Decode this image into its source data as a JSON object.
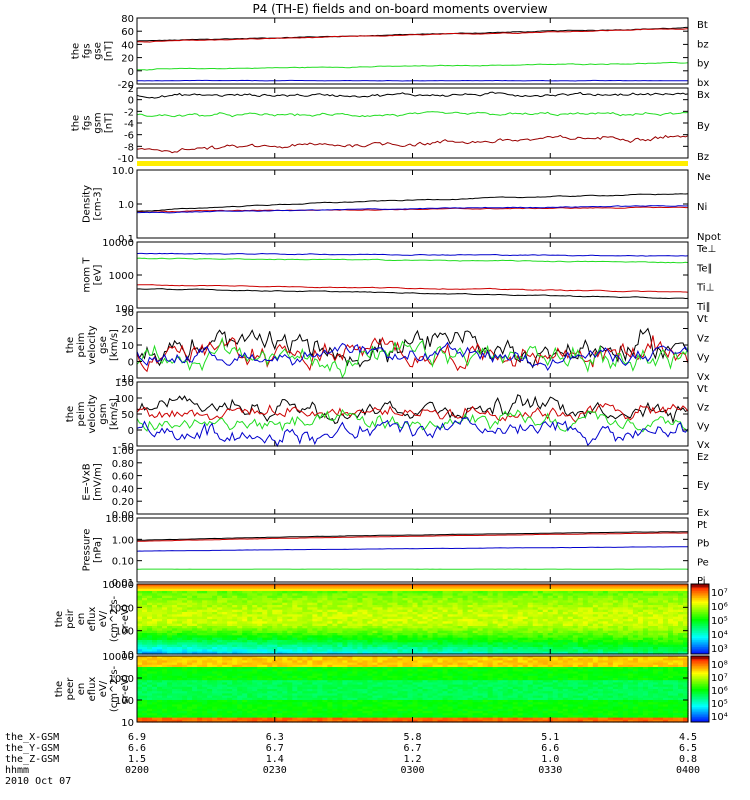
{
  "title": "P4 (TH-E) fields and on-board moments overview",
  "colors": {
    "black": "#000000",
    "red": "#cc0000",
    "green": "#22dd22",
    "blue": "#0000cc",
    "darkred": "#990000",
    "yellow": "#ffee00"
  },
  "chart_data": [
    {
      "type": "line",
      "id": "fgs_gse",
      "ylabel": [
        "the",
        "fgs",
        "gse",
        "[nT]"
      ],
      "yticks": [
        "80",
        "60",
        "40",
        "20",
        "0",
        "-20"
      ],
      "ylim": [
        -20,
        80
      ],
      "series": [
        {
          "name": "Bt",
          "color": "#000000",
          "start": 45,
          "end": 65,
          "noise": 0.4
        },
        {
          "name": "bz",
          "color": "#cc0000",
          "start": 44,
          "end": 64,
          "noise": 0.4
        },
        {
          "name": "by",
          "color": "#22dd22",
          "start": 2,
          "end": 12,
          "noise": 0.4
        },
        {
          "name": "bx",
          "color": "#0000cc",
          "start": -15,
          "end": -15,
          "noise": 0.2
        }
      ]
    },
    {
      "type": "line",
      "id": "fgs_gsm",
      "ylabel": [
        "the",
        "fgs",
        "gsm",
        "[nT]"
      ],
      "yticks": [
        "2",
        "0",
        "-2",
        "-4",
        "-6",
        "-8",
        "-10"
      ],
      "ylim": [
        -11,
        3
      ],
      "series": [
        {
          "name": "Bx",
          "color": "#000000",
          "start": 1.5,
          "end": 1.8,
          "noise": 0.2
        },
        {
          "name": "By",
          "color": "#22dd22",
          "start": -2.5,
          "end": -2.2,
          "noise": 0.2
        },
        {
          "name": "Bz",
          "color": "#990000",
          "start": -9.5,
          "end": -6.5,
          "noise": 0.3
        }
      ]
    },
    {
      "type": "line",
      "id": "density",
      "ylabel": [
        "Density",
        "[cm-3]"
      ],
      "yticks": [
        "10.0",
        "1.0",
        "0.1"
      ],
      "ylim": [
        0.1,
        10
      ],
      "log": true,
      "series": [
        {
          "name": "Ne",
          "color": "#cc0000",
          "start": 0.6,
          "end": 0.8,
          "noise": 0.02
        },
        {
          "name": "Ni",
          "color": "#000000",
          "start": 0.6,
          "end": 2.0,
          "noise": 0.02
        },
        {
          "name": "Npot",
          "color": "#0000cc",
          "start": 0.55,
          "end": 0.9,
          "noise": 0.02
        }
      ]
    },
    {
      "type": "line",
      "id": "mom_t",
      "ylabel": [
        "mom T",
        "[eV]"
      ],
      "yticks": [
        "10000",
        "1000",
        "100"
      ],
      "ylim": [
        100,
        10000
      ],
      "log": true,
      "series": [
        {
          "name": "Te⊥",
          "color": "#cc0000",
          "start": 500,
          "end": 300,
          "noise": 0.02
        },
        {
          "name": "Te∥",
          "color": "#000000",
          "start": 380,
          "end": 190,
          "noise": 0.02
        },
        {
          "name": "Ti⊥",
          "color": "#0000cc",
          "start": 4500,
          "end": 3800,
          "noise": 0.02
        },
        {
          "name": "Ti∥",
          "color": "#22dd22",
          "start": 3200,
          "end": 2400,
          "noise": 0.02
        }
      ]
    },
    {
      "type": "line",
      "id": "peim_velocity_gse",
      "ylabel": [
        "the",
        "peim",
        "velocity",
        "gse",
        "[km/s]"
      ],
      "yticks": [
        "30",
        "20",
        "10",
        "0",
        "-10"
      ],
      "ylim": [
        -15,
        30
      ],
      "series": [
        {
          "name": "Vt",
          "color": "#000000",
          "start": 5,
          "end": 5,
          "noise": 6
        },
        {
          "name": "Vz",
          "color": "#cc0000",
          "start": 2,
          "end": 2,
          "noise": 5
        },
        {
          "name": "Vy",
          "color": "#22dd22",
          "start": -1,
          "end": -1,
          "noise": 5
        },
        {
          "name": "Vx",
          "color": "#0000cc",
          "start": 0,
          "end": 0,
          "noise": 3
        }
      ]
    },
    {
      "type": "line",
      "id": "peim_velocity_gsm",
      "ylabel": [
        "the",
        "peim",
        "velocity",
        "gsm",
        "[km/s]"
      ],
      "yticks": [
        "150",
        "100",
        "50",
        "0",
        "-50"
      ],
      "ylim": [
        -60,
        160
      ],
      "series": [
        {
          "name": "Vt",
          "color": "#000000",
          "start": 75,
          "end": 75,
          "noise": 20
        },
        {
          "name": "Vz",
          "color": "#cc0000",
          "start": 60,
          "end": 60,
          "noise": 15
        },
        {
          "name": "Vy",
          "color": "#22dd22",
          "start": 15,
          "end": 15,
          "noise": 18
        },
        {
          "name": "Vx",
          "color": "#0000cc",
          "start": -15,
          "end": -15,
          "noise": 20
        }
      ]
    },
    {
      "type": "line",
      "id": "e_vxb",
      "ylabel": [
        "E=-VxB",
        "[mV/m]"
      ],
      "yticks": [
        "1.00",
        "0.80",
        "0.60",
        "0.40",
        "0.20",
        "0.00"
      ],
      "ylim": [
        0,
        1
      ],
      "series": [
        {
          "name": "Ez",
          "color": "#cc0000"
        },
        {
          "name": "Ey",
          "color": "#22dd22"
        },
        {
          "name": "Ex",
          "color": "#0000cc"
        }
      ]
    },
    {
      "type": "line",
      "id": "pressure",
      "ylabel": [
        "Pressure",
        "[nPa]"
      ],
      "yticks": [
        "10.00",
        "1.00",
        "0.10",
        "0.01"
      ],
      "ylim": [
        0.01,
        10
      ],
      "log": true,
      "series": [
        {
          "name": "Pt",
          "color": "#000000",
          "start": 0.9,
          "end": 2.3,
          "noise": 0.01
        },
        {
          "name": "Pb",
          "color": "#cc0000",
          "start": 0.8,
          "end": 2.0,
          "noise": 0.01
        },
        {
          "name": "Pe",
          "color": "#0000cc",
          "start": 0.28,
          "end": 0.45,
          "noise": 0.01
        },
        {
          "name": "Pi",
          "color": "#22dd22",
          "start": 0.04,
          "end": 0.04,
          "noise": 0.005
        }
      ]
    },
    {
      "type": "heatmap",
      "id": "peir_en_eflux",
      "ylabel": [
        "the",
        "peir",
        "en",
        "eflux",
        "eV/",
        "(cm^2-s-",
        "sr-eV)"
      ],
      "yticks": [
        "10000",
        "1000",
        "100",
        "10"
      ],
      "ylim": [
        10,
        20000
      ],
      "log": true,
      "colorbar": [
        "10⁷",
        "10⁶",
        "10⁵",
        "10⁴",
        "10³"
      ]
    },
    {
      "type": "heatmap",
      "id": "peer_en_eflux",
      "ylabel": [
        "the",
        "peer",
        "en",
        "eflux",
        "eV/",
        "(cm^2-s-",
        "sr-eV)"
      ],
      "yticks": [
        "10000",
        "1000",
        "100",
        "10"
      ],
      "ylim": [
        10,
        20000
      ],
      "log": true,
      "colorbar": [
        "10⁸",
        "10⁷",
        "10⁶",
        "10⁵",
        "10⁴"
      ]
    }
  ],
  "xaxis": {
    "rows": [
      {
        "label": "the_X-GSM",
        "values": [
          "6.9",
          "6.3",
          "5.8",
          "5.1",
          "4.5"
        ]
      },
      {
        "label": "the_Y-GSM",
        "values": [
          "6.6",
          "6.7",
          "6.7",
          "6.6",
          "6.5"
        ]
      },
      {
        "label": "the_Z-GSM",
        "values": [
          "1.5",
          "1.4",
          "1.2",
          "1.0",
          "0.8"
        ]
      },
      {
        "label": "hhmm",
        "values": [
          "0200",
          "0230",
          "0300",
          "0330",
          "0400"
        ]
      }
    ],
    "date": "2010 Oct 07"
  }
}
